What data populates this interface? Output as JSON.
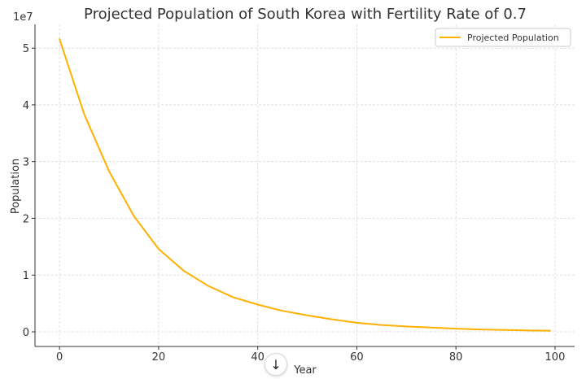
{
  "chart_data": {
    "type": "line",
    "title": "Projected Population of South Korea with Fertility Rate of 0.7",
    "xlabel": "Year",
    "ylabel": "Population",
    "y_offset_text": "1e7",
    "xlim": [
      -4.95,
      103.95
    ],
    "ylim": [
      -2580000,
      54180000
    ],
    "x_ticks": [
      0,
      20,
      40,
      60,
      80,
      100
    ],
    "x_tick_labels": [
      "0",
      "20",
      "40",
      "60",
      "80",
      "100"
    ],
    "y_ticks": [
      0,
      10000000,
      20000000,
      30000000,
      40000000,
      50000000
    ],
    "y_tick_labels": [
      "0",
      "1",
      "2",
      "3",
      "4",
      "5"
    ],
    "grid": true,
    "legend_position": "top-right",
    "series": [
      {
        "name": "Projected Population",
        "color": "#ffb000",
        "x": [
          0,
          5,
          10,
          15,
          20,
          25,
          30,
          35,
          40,
          45,
          50,
          55,
          60,
          65,
          70,
          75,
          80,
          85,
          90,
          95,
          99
        ],
        "y": [
          51600000,
          38300000,
          28300000,
          20400000,
          14600000,
          10800000,
          8100000,
          6100000,
          4800000,
          3700000,
          2900000,
          2200000,
          1600000,
          1200000,
          950000,
          750000,
          550000,
          420000,
          320000,
          240000,
          200000
        ]
      }
    ]
  },
  "ui": {
    "scroll_down_icon": "↓"
  }
}
